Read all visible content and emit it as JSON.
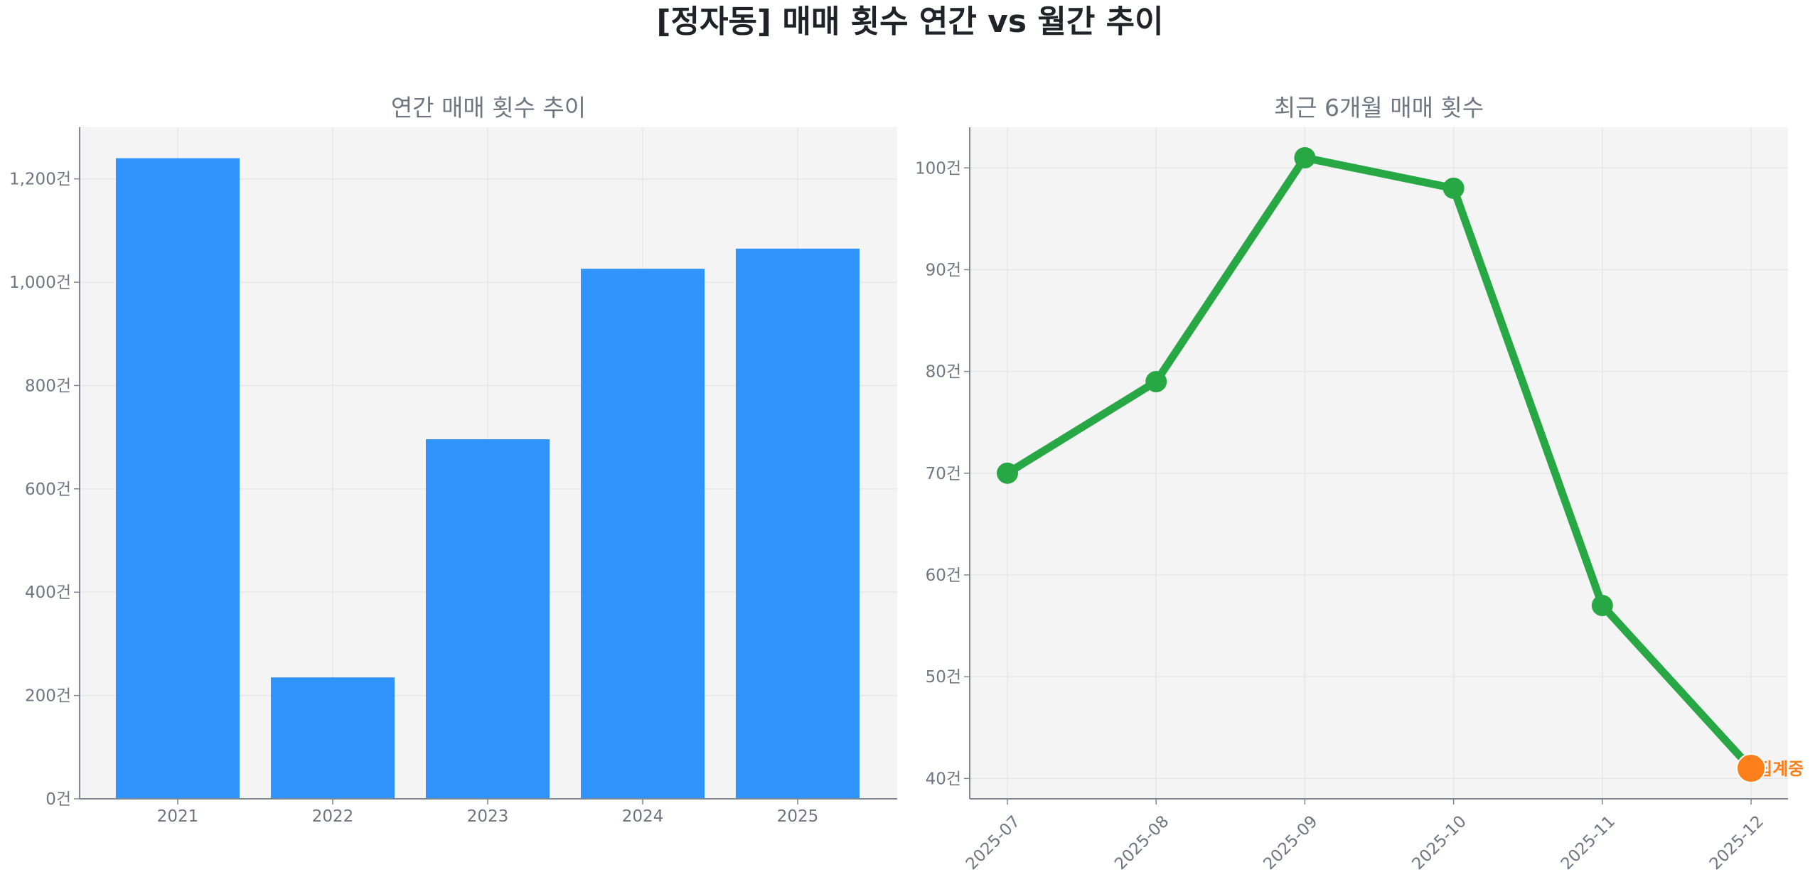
{
  "figure": {
    "title": "[정자동] 매매 횟수 연간 vs 월간 추이",
    "background": "#ffffff",
    "plot_background": "#f4f4f4",
    "grid_color": "#e6e6e6",
    "axis_color": "#7f8791",
    "tick_color": "#6e7681"
  },
  "chart_data": [
    {
      "type": "bar",
      "title": "연간 매매 횟수 추이",
      "xlabel": "",
      "ylabel": "",
      "categories": [
        "2021",
        "2022",
        "2023",
        "2024",
        "2025"
      ],
      "values": [
        1240,
        235,
        696,
        1026,
        1065
      ],
      "ylim": [
        0,
        1300
      ],
      "yticks": [
        0,
        200,
        400,
        600,
        800,
        1000,
        1200
      ],
      "ytick_labels": [
        "0건",
        "200건",
        "400건",
        "600건",
        "800건",
        "1,000건",
        "1,200건"
      ],
      "color": "#3093fb",
      "grid": true,
      "legend": null
    },
    {
      "type": "line",
      "title": "최근 6개월 매매 횟수",
      "xlabel": "",
      "ylabel": "",
      "categories": [
        "2025-07",
        "2025-08",
        "2025-09",
        "2025-10",
        "2025-11",
        "2025-12"
      ],
      "series": [
        {
          "name": "매매 횟수",
          "values": [
            70,
            79,
            101,
            98,
            57,
            41
          ],
          "color": "#28a745"
        }
      ],
      "ylim": [
        38,
        104
      ],
      "yticks": [
        40,
        50,
        60,
        70,
        80,
        90,
        100
      ],
      "ytick_labels": [
        "40건",
        "50건",
        "60건",
        "70건",
        "80건",
        "90건",
        "100건"
      ],
      "x_tick_rotation": 45,
      "grid": true,
      "legend": null,
      "annotations": [
        {
          "category": "2025-12",
          "value": 41,
          "text": "집계중",
          "marker_color": "#fd7f1c",
          "text_color": "#fd7f1c"
        }
      ]
    }
  ]
}
